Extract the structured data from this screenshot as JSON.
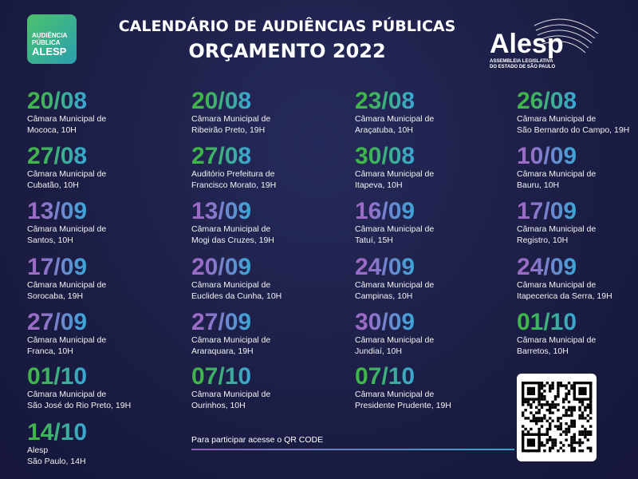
{
  "header": {
    "title": "CALENDÁRIO DE AUDIÊNCIAS PÚBLICAS",
    "subtitle": "ORÇAMENTO 2022"
  },
  "logo_left": {
    "lines": [
      "AUDIÊNCIA",
      "PÚBLICA",
      "ALESP"
    ]
  },
  "logo_right": {
    "name": "Alesp",
    "lines": [
      "ASSEMBLEIA LEGISLATIVA",
      "DO ESTADO DE SÃO PAULO"
    ]
  },
  "columns": [
    [
      {
        "date": "20/08",
        "lines": [
          "Câmara Municipal de",
          "Mococa, 10H"
        ],
        "color": "#3fb54a"
      },
      {
        "date": "27/08",
        "lines": [
          "Câmara Municipal de",
          "Cubatão, 10H"
        ],
        "color": "#3fb54a"
      },
      {
        "date": "13/09",
        "lines": [
          "Câmara Municipal de",
          "Santos, 10H"
        ],
        "color": "#9a6cc6"
      },
      {
        "date": "17/09",
        "lines": [
          "Câmara Municipal de",
          "Sorocaba, 19H"
        ],
        "color": "#9a6cc6"
      },
      {
        "date": "27/09",
        "lines": [
          "Câmara Municipal de",
          "Franca, 10H"
        ],
        "color": "#9a6cc6"
      },
      {
        "date": "01/10",
        "lines": [
          "Câmara Municipal de",
          "São José do Rio Preto, 19H"
        ],
        "color": "#3fb54a"
      },
      {
        "date": "14/10",
        "lines": [
          "Alesp",
          "São Paulo, 14H"
        ],
        "color": "#3fb54a"
      }
    ],
    [
      {
        "date": "20/08",
        "lines": [
          "Câmara Municipal de",
          "Ribeirão Preto, 19H"
        ],
        "color": "#3fb54a"
      },
      {
        "date": "27/08",
        "lines": [
          "Auditório Prefeitura de",
          "Francisco Morato, 19H"
        ],
        "color": "#3fb54a"
      },
      {
        "date": "13/09",
        "lines": [
          "Câmara Municipal de",
          "Mogi das Cruzes, 19H"
        ],
        "color": "#9a6cc6"
      },
      {
        "date": "20/09",
        "lines": [
          "Câmara Municipal de",
          "Euclides da Cunha, 10H"
        ],
        "color": "#9a6cc6"
      },
      {
        "date": "27/09",
        "lines": [
          "Câmara Municipal de",
          "Araraquara, 19H"
        ],
        "color": "#9a6cc6"
      },
      {
        "date": "07/10",
        "lines": [
          "Câmara Municipal de",
          "Ourinhos, 10H"
        ],
        "color": "#3fb54a"
      }
    ],
    [
      {
        "date": "23/08",
        "lines": [
          "Câmara Municipal de",
          "Araçatuba, 10H"
        ],
        "color": "#3fb54a"
      },
      {
        "date": "30/08",
        "lines": [
          "Câmara Municipal de",
          "Itapeva, 10H"
        ],
        "color": "#3fb54a"
      },
      {
        "date": "16/09",
        "lines": [
          "Câmara Municipal de",
          "Tatuí, 15H"
        ],
        "color": "#9a6cc6"
      },
      {
        "date": "24/09",
        "lines": [
          "Câmara Municipal de",
          "Campinas, 10H"
        ],
        "color": "#9a6cc6"
      },
      {
        "date": "30/09",
        "lines": [
          "Câmara Municipal de",
          "Jundiaí, 10H"
        ],
        "color": "#9a6cc6"
      },
      {
        "date": "07/10",
        "lines": [
          "Câmara Municipal de",
          "Presidente Prudente, 19H"
        ],
        "color": "#3fb54a"
      }
    ],
    [
      {
        "date": "26/08",
        "lines": [
          "Câmara Municipal de",
          "São Bernardo do Campo, 19H"
        ],
        "color": "#3fb54a"
      },
      {
        "date": "10/09",
        "lines": [
          "Câmara Municipal de",
          "Bauru, 10H"
        ],
        "color": "#9a6cc6"
      },
      {
        "date": "17/09",
        "lines": [
          "Câmara Municipal de",
          "Registro, 10H"
        ],
        "color": "#9a6cc6"
      },
      {
        "date": "24/09",
        "lines": [
          "Câmara Municipal de",
          "Itapecerica da Serra, 19H"
        ],
        "color": "#9a6cc6"
      },
      {
        "date": "01/10",
        "lines": [
          "Câmara Municipal de",
          "Barretos, 10H"
        ],
        "color": "#3fb54a"
      }
    ]
  ],
  "footer": {
    "text": "Para participar acesse o QR CODE"
  }
}
